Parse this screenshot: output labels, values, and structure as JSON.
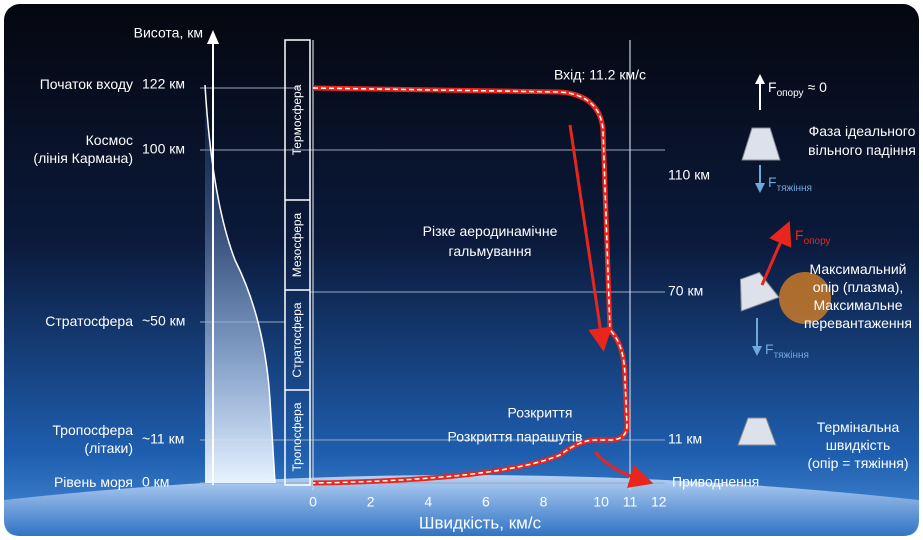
{
  "altitude_axis": {
    "title": "Висота, км",
    "levels": [
      {
        "name": [
          "Початок входу"
        ],
        "value": "122 км"
      },
      {
        "name": [
          "Космос",
          "(лінія Кармана)"
        ],
        "value": "100 км"
      },
      {
        "name": [
          "Стратосфера"
        ],
        "value": "~50 км"
      },
      {
        "name": [
          "Тропосфера",
          "(літаки)"
        ],
        "value": "~11 км"
      },
      {
        "name": [
          "Рівень моря"
        ],
        "value": "0 км"
      }
    ]
  },
  "layers": [
    "Термосфера",
    "Мезосфера",
    "Стратосфера",
    "Тропосфера"
  ],
  "speed_axis": {
    "title": "Швидкість, км/с",
    "ticks": [
      0,
      2,
      4,
      6,
      8,
      10,
      11,
      12
    ]
  },
  "annotations": {
    "entry": "Вхід: 11.2 км/с",
    "braking": [
      "Різке аеродинамічне",
      "гальмування"
    ],
    "opening": "Розкриття",
    "parachutes": "Розкриття парашутів"
  },
  "trajectory_altitudes": [
    "110 км",
    "70 км",
    "11 км",
    "Приводнення"
  ],
  "phases": [
    {
      "force_top": {
        "symbol": "F",
        "sub": "опору",
        "suffix": "≈ 0"
      },
      "force_bottom": {
        "symbol": "F",
        "sub": "тяжіння"
      },
      "text": [
        "Фаза ідеального",
        "вільного падіння"
      ]
    },
    {
      "force_top": {
        "symbol": "F",
        "sub": "опору"
      },
      "force_bottom": {
        "symbol": "F",
        "sub": "тяжіння"
      },
      "text": [
        "Максимальний",
        "опір (плазма),",
        "Максимальне",
        "перевантаження"
      ]
    },
    {
      "text": [
        "Термінальна",
        "швидкість",
        "(опір = тяжіння)"
      ]
    }
  ]
}
